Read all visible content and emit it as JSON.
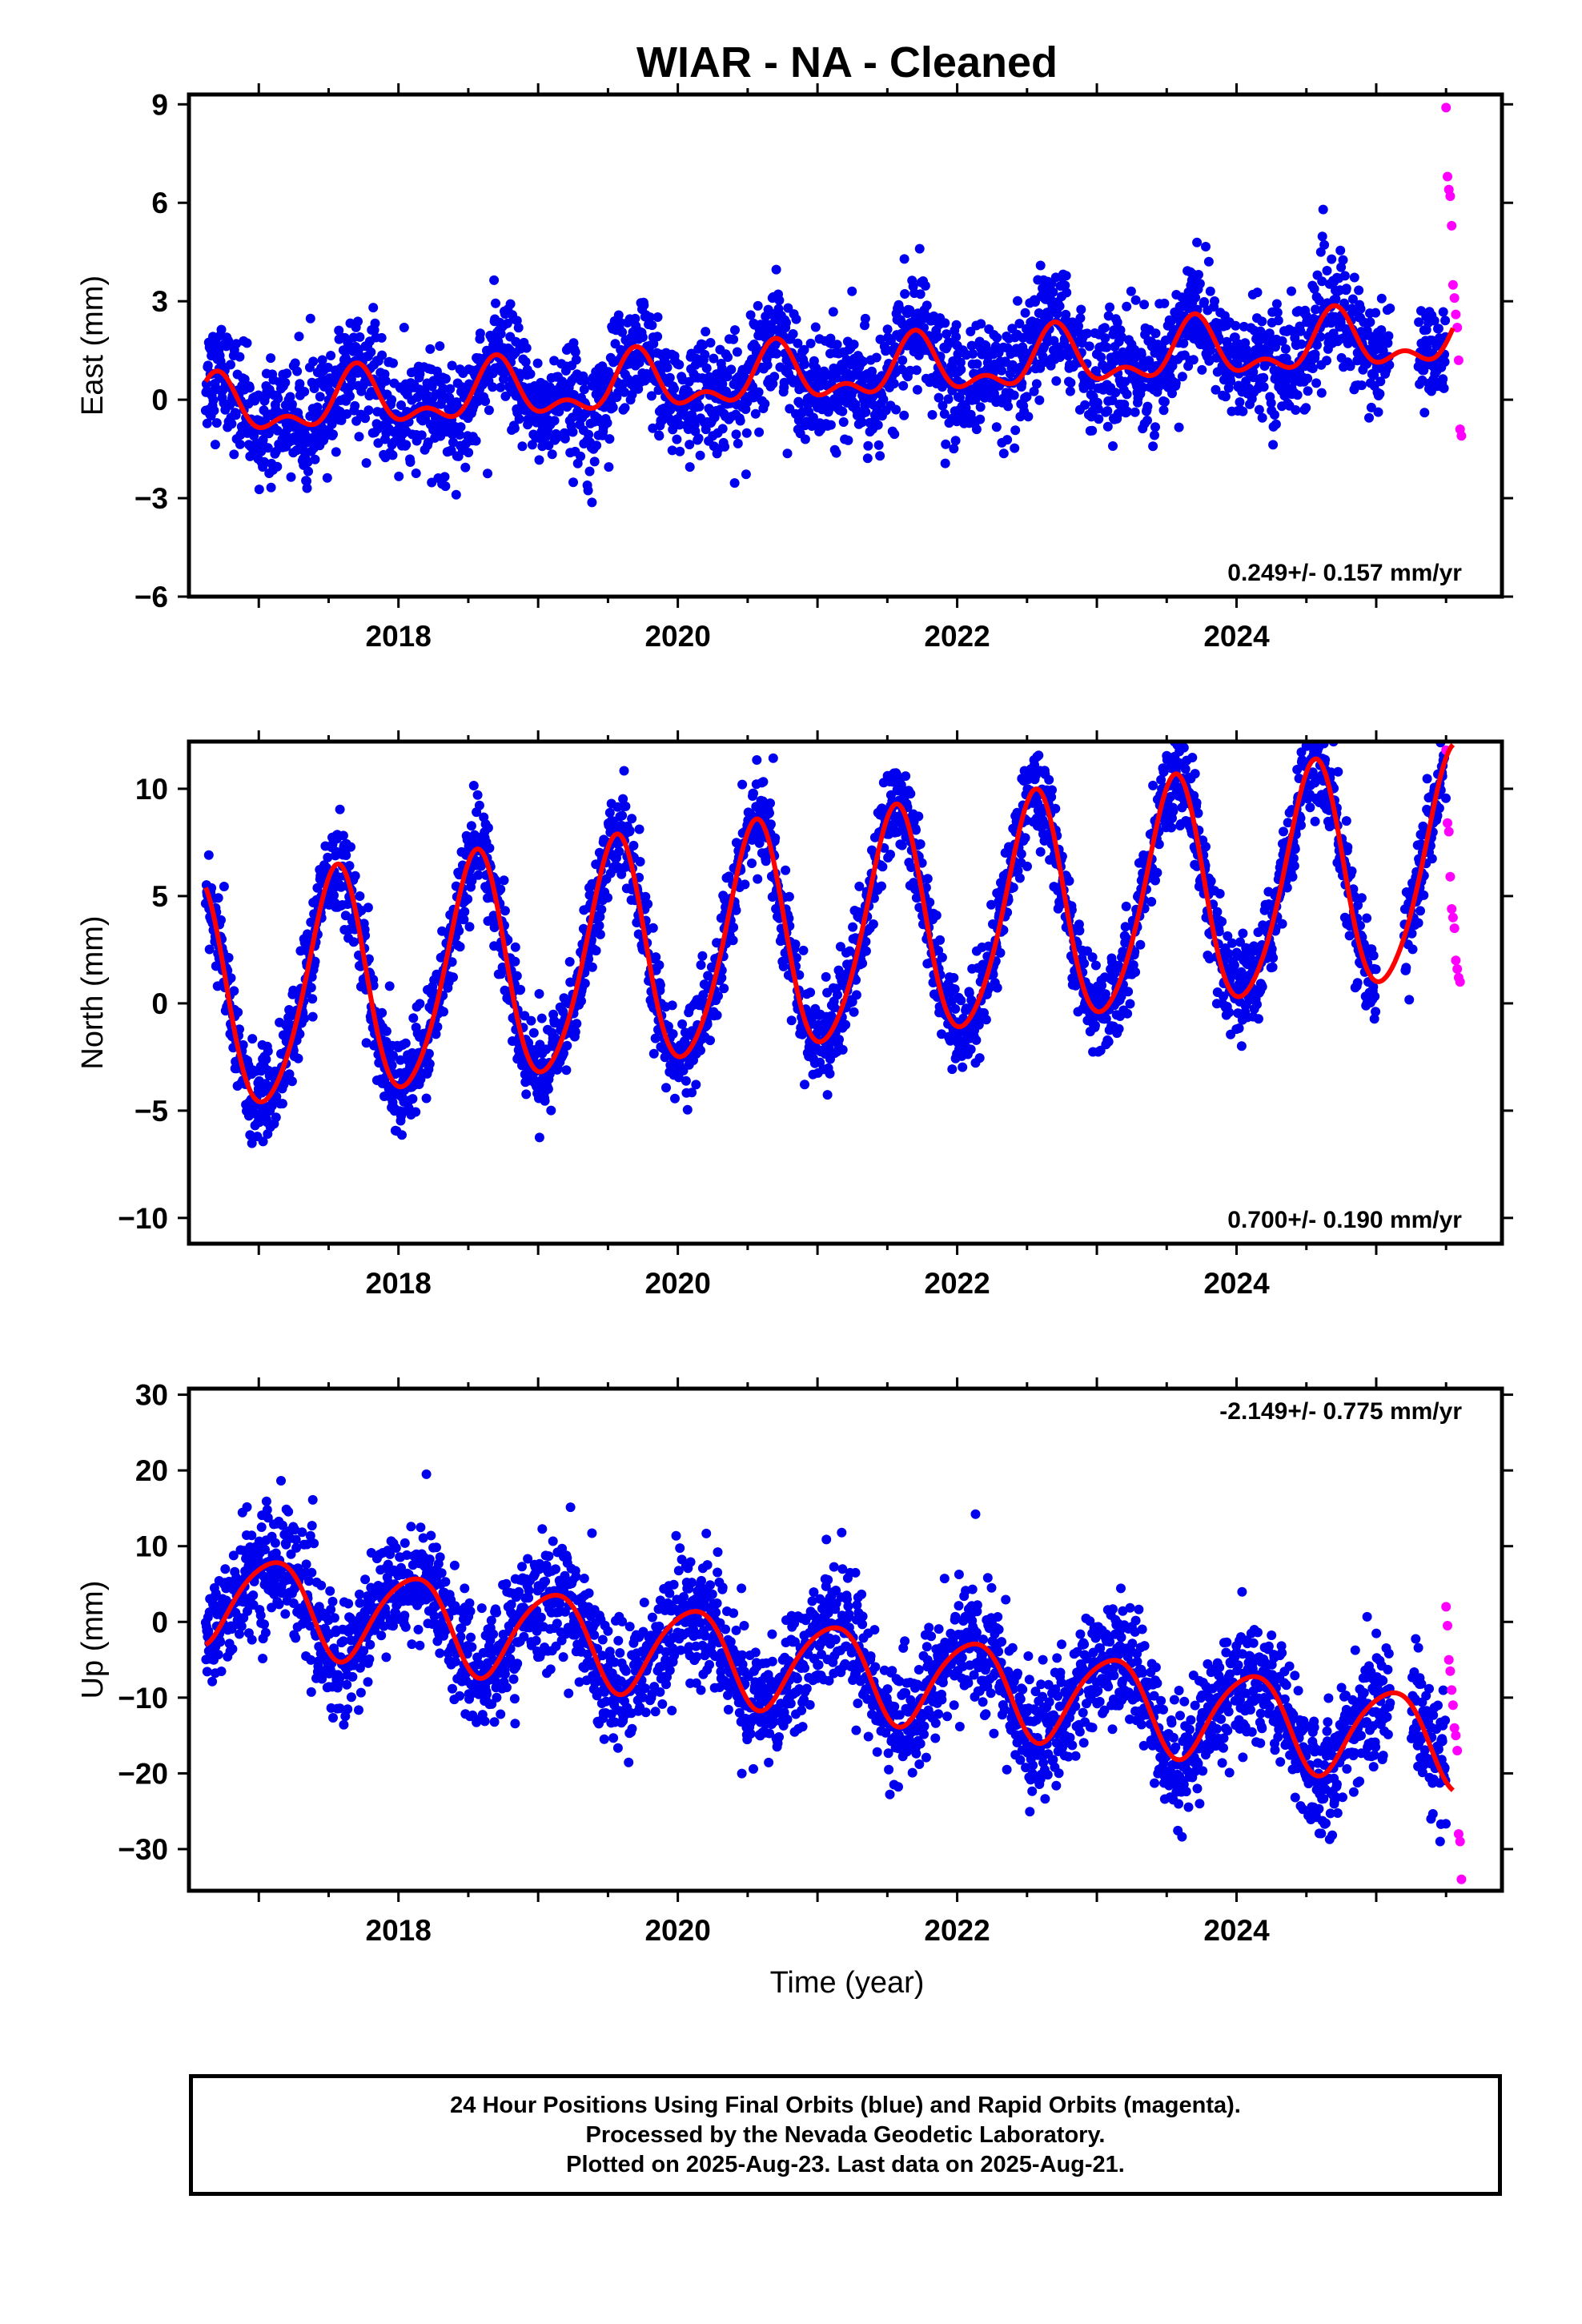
{
  "title": "WIAR  - NA - Cleaned",
  "colors": {
    "final": "#0000ee",
    "rapid": "#ff00ff",
    "model": "#ff0000",
    "axis": "#000000"
  },
  "x_axis": {
    "label": "Time (year)",
    "range": [
      2016.5,
      2025.9
    ],
    "ticks": [
      2018,
      2020,
      2022,
      2024
    ],
    "tick_labels": [
      "2018",
      "2020",
      "2022",
      "2024"
    ]
  },
  "chart_data": [
    {
      "type": "scatter",
      "component": "east",
      "ylabel": "East (mm)",
      "ylim": [
        -6,
        9.3
      ],
      "yticks": [
        -6,
        -3,
        0,
        3,
        6,
        9
      ],
      "ytick_labels": [
        "−6",
        "−3",
        "0",
        "3",
        "6",
        "9"
      ],
      "rate_text": "0.249+/- 0.157 mm/yr",
      "rate_position": "bottom-right",
      "model": {
        "offset": -0.35,
        "trend": 0.249,
        "annual_amp": 0.75,
        "annual_phase": 0.7,
        "semiannual_amp": 0.45,
        "semiannual_phase": 0.2
      },
      "scatter_sd": 0.85,
      "final_start": 2016.62,
      "final_end": 2025.1,
      "gap": [
        2025.1,
        2025.3
      ],
      "final_resume_end": 2025.5,
      "rapid_x": [
        2025.5,
        2025.51,
        2025.52,
        2025.53,
        2025.54,
        2025.55,
        2025.56,
        2025.57,
        2025.58,
        2025.59,
        2025.6,
        2025.61
      ],
      "rapid_y": [
        8.9,
        6.8,
        6.4,
        6.2,
        5.3,
        3.5,
        3.1,
        2.6,
        2.2,
        1.2,
        -0.9,
        -1.1
      ]
    },
    {
      "type": "scatter",
      "component": "north",
      "ylabel": "North (mm)",
      "ylim": [
        -11.2,
        12.2
      ],
      "yticks": [
        -10,
        -5,
        0,
        5,
        10
      ],
      "ytick_labels": [
        "−10",
        "−5",
        "0",
        "5",
        "10"
      ],
      "rate_text": "0.700+/- 0.190 mm/yr",
      "rate_position": "bottom-right",
      "model": {
        "offset": 0.0,
        "trend": 0.7,
        "annual_amp": 5.3,
        "annual_phase": 0.55,
        "semiannual_amp": 0.6,
        "semiannual_phase": 0.1
      },
      "scatter_sd": 1.1,
      "final_start": 2016.62,
      "final_end": 2025.0,
      "gap": [
        2025.0,
        2025.2
      ],
      "final_resume_end": 2025.5,
      "rapid_x": [
        2025.5,
        2025.51,
        2025.52,
        2025.53,
        2025.54,
        2025.55,
        2025.56,
        2025.57,
        2025.58,
        2025.59,
        2025.6
      ],
      "rapid_y": [
        11.8,
        8.4,
        8.0,
        5.9,
        4.4,
        4.0,
        3.5,
        2.0,
        1.6,
        1.2,
        1.0
      ]
    },
    {
      "type": "scatter",
      "component": "up",
      "ylabel": "Up (mm)",
      "ylim": [
        -35.5,
        30.8
      ],
      "yticks": [
        -30,
        -20,
        -10,
        0,
        10,
        20,
        30
      ],
      "ytick_labels": [
        "−30",
        "−20",
        "−10",
        "0",
        "10",
        "20",
        "30"
      ],
      "rate_text": "-2.149+/- 0.775 mm/yr",
      "rate_position": "top-right",
      "model": {
        "offset": 3.5,
        "trend": -2.149,
        "annual_amp": 6.0,
        "annual_phase": 0.1,
        "semiannual_amp": 0.8,
        "semiannual_phase": 0.3
      },
      "scatter_sd": 4.0,
      "final_start": 2016.62,
      "final_end": 2025.1,
      "gap": [
        2025.1,
        2025.25
      ],
      "final_resume_end": 2025.5,
      "rapid_x": [
        2025.5,
        2025.51,
        2025.52,
        2025.53,
        2025.54,
        2025.55,
        2025.56,
        2025.57,
        2025.58,
        2025.59,
        2025.6,
        2025.61
      ],
      "rapid_y": [
        2.0,
        -0.5,
        -5.0,
        -6.5,
        -9.0,
        -11.0,
        -14.0,
        -15.0,
        -17.0,
        -28.0,
        -29.0,
        -34.0
      ]
    }
  ],
  "footer": {
    "line1": "24 Hour Positions Using Final Orbits (blue) and Rapid Orbits (magenta).",
    "line2": "Processed by the Nevada Geodetic Laboratory.",
    "line3": "Plotted on 2025-Aug-23. Last data on 2025-Aug-21."
  }
}
